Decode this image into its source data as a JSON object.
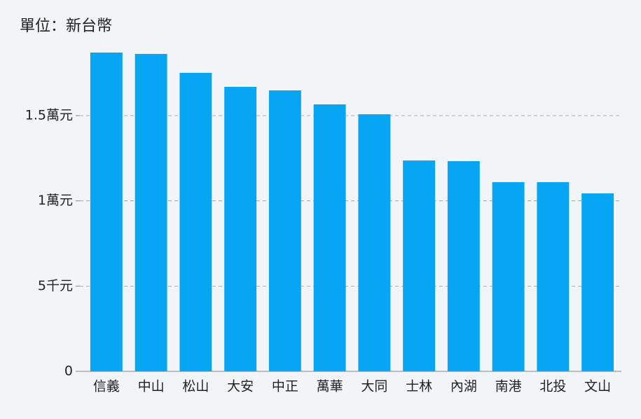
{
  "chart_data": {
    "type": "bar",
    "title": "單位：新台幣",
    "categories": [
      "信義",
      "中山",
      "松山",
      "大安",
      "中正",
      "萬華",
      "大同",
      "士林",
      "內湖",
      "南港",
      "北投",
      "文山"
    ],
    "values": [
      18700,
      18620,
      17510,
      16690,
      16480,
      15660,
      15080,
      12370,
      12330,
      11100,
      11100,
      10440
    ],
    "color": "#07a6f4",
    "ylim": [
      0,
      19000
    ],
    "yticks": [
      0,
      {
        "value": 5000,
        "label": "5千元"
      },
      {
        "value": 10000,
        "label": "1萬元"
      },
      {
        "value": 15000,
        "label": "1.5萬元"
      }
    ],
    "grid": true
  }
}
